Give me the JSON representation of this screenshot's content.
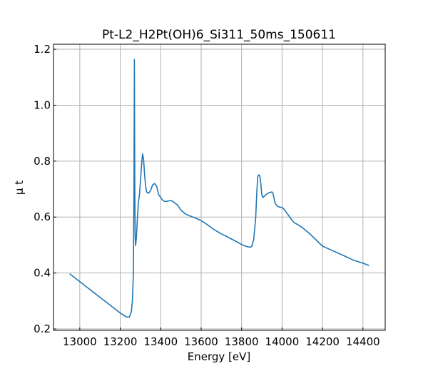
{
  "chart_data": {
    "type": "line",
    "title": "Pt-L2_H2Pt(OH)6_Si311_50ms_150611",
    "xlabel": "Energy [eV]",
    "ylabel": "μ t",
    "xlim": [
      12870,
      14510
    ],
    "ylim": [
      0.195,
      1.218
    ],
    "xticks": [
      13000,
      13200,
      13400,
      13600,
      13800,
      14000,
      14200,
      14400
    ],
    "yticks": [
      0.2,
      0.4,
      0.6,
      0.8,
      1.0,
      1.2
    ],
    "ytick_labels": [
      "0.2",
      "0.4",
      "0.6",
      "0.8",
      "1.0",
      "1.2"
    ],
    "grid": true,
    "line_color": "#1f77b4",
    "series": [
      {
        "x": [
          12950,
          13000,
          13050,
          13100,
          13150,
          13200,
          13230,
          13245,
          13255,
          13260,
          13265,
          13268,
          13270,
          13271,
          13272,
          13273,
          13274,
          13276,
          13280,
          13285,
          13290,
          13295,
          13300,
          13305,
          13310,
          13315,
          13320,
          13325,
          13330,
          13340,
          13350,
          13360,
          13370,
          13380,
          13385,
          13390,
          13395,
          13400,
          13410,
          13420,
          13430,
          13440,
          13450,
          13460,
          13470,
          13480,
          13490,
          13500,
          13520,
          13540,
          13560,
          13580,
          13600,
          13620,
          13640,
          13660,
          13680,
          13700,
          13720,
          13740,
          13760,
          13780,
          13800,
          13820,
          13840,
          13850,
          13860,
          13870,
          13875,
          13880,
          13885,
          13890,
          13895,
          13900,
          13905,
          13910,
          13915,
          13920,
          13930,
          13940,
          13950,
          13955,
          13960,
          13965,
          13970,
          13980,
          13990,
          14000,
          14010,
          14020,
          14030,
          14040,
          14050,
          14060,
          14080,
          14100,
          14120,
          14140,
          14160,
          14180,
          14200,
          14250,
          14300,
          14350,
          14400,
          14430
        ],
        "y": [
          0.397,
          0.369,
          0.341,
          0.313,
          0.285,
          0.257,
          0.243,
          0.242,
          0.262,
          0.3,
          0.4,
          0.7,
          1.163,
          0.9,
          0.7,
          0.6,
          0.53,
          0.498,
          0.53,
          0.6,
          0.655,
          0.68,
          0.73,
          0.78,
          0.826,
          0.81,
          0.755,
          0.715,
          0.69,
          0.685,
          0.695,
          0.715,
          0.72,
          0.71,
          0.695,
          0.68,
          0.675,
          0.67,
          0.66,
          0.656,
          0.656,
          0.658,
          0.659,
          0.656,
          0.65,
          0.645,
          0.636,
          0.625,
          0.612,
          0.605,
          0.6,
          0.594,
          0.587,
          0.578,
          0.568,
          0.557,
          0.548,
          0.54,
          0.533,
          0.525,
          0.518,
          0.51,
          0.502,
          0.496,
          0.492,
          0.495,
          0.52,
          0.6,
          0.69,
          0.745,
          0.751,
          0.748,
          0.72,
          0.68,
          0.67,
          0.673,
          0.676,
          0.68,
          0.685,
          0.688,
          0.69,
          0.685,
          0.668,
          0.652,
          0.645,
          0.638,
          0.635,
          0.635,
          0.628,
          0.618,
          0.608,
          0.598,
          0.588,
          0.58,
          0.572,
          0.562,
          0.551,
          0.538,
          0.524,
          0.51,
          0.496,
          0.48,
          0.464,
          0.447,
          0.435,
          0.427
        ]
      }
    ]
  }
}
